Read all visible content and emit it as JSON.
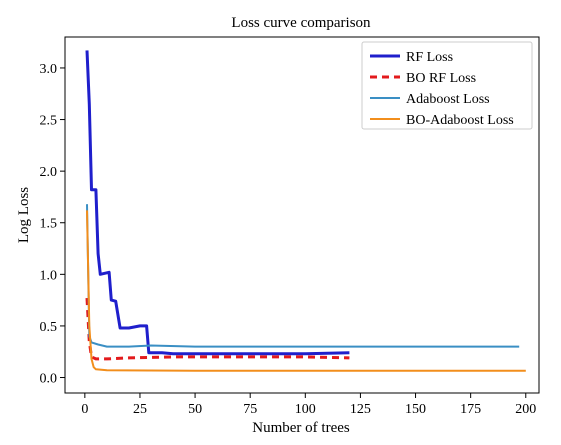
{
  "chart_data": {
    "type": "line",
    "title": "Loss curve comparison",
    "xlabel": "Number of trees",
    "ylabel": "Log Loss",
    "xlim": [
      -9,
      206
    ],
    "ylim": [
      -0.15,
      3.3
    ],
    "xticks": [
      0,
      25,
      50,
      75,
      100,
      125,
      150,
      175,
      200
    ],
    "yticks": [
      0.0,
      0.5,
      1.0,
      1.5,
      2.0,
      2.5,
      3.0
    ],
    "ytick_labels": [
      "0.0",
      "0.5",
      "1.0",
      "1.5",
      "2.0",
      "2.5",
      "3.0"
    ],
    "grid": false,
    "legend_position": "top-right",
    "series": [
      {
        "name": "RF Loss",
        "color": "#1f1fcc",
        "style": "solid",
        "width": "thick",
        "points": [
          [
            1,
            3.17
          ],
          [
            2,
            2.65
          ],
          [
            3,
            1.82
          ],
          [
            5,
            1.82
          ],
          [
            6,
            1.2
          ],
          [
            7,
            1.0
          ],
          [
            11,
            1.02
          ],
          [
            12,
            0.75
          ],
          [
            14,
            0.74
          ],
          [
            16,
            0.48
          ],
          [
            20,
            0.48
          ],
          [
            25,
            0.5
          ],
          [
            28,
            0.5
          ],
          [
            29,
            0.24
          ],
          [
            35,
            0.24
          ],
          [
            40,
            0.23
          ],
          [
            60,
            0.23
          ],
          [
            80,
            0.23
          ],
          [
            100,
            0.23
          ],
          [
            120,
            0.24
          ]
        ]
      },
      {
        "name": "BO RF Loss",
        "color": "#e31a1c",
        "style": "dashed",
        "width": "thick",
        "points": [
          [
            1,
            0.77
          ],
          [
            2,
            0.35
          ],
          [
            3,
            0.2
          ],
          [
            5,
            0.18
          ],
          [
            10,
            0.18
          ],
          [
            20,
            0.19
          ],
          [
            40,
            0.2
          ],
          [
            60,
            0.2
          ],
          [
            80,
            0.2
          ],
          [
            100,
            0.2
          ],
          [
            120,
            0.19
          ]
        ]
      },
      {
        "name": "Adaboost Loss",
        "color": "#3a8fc4",
        "style": "solid",
        "width": "normal",
        "points": [
          [
            1,
            1.68
          ],
          [
            2,
            0.4
          ],
          [
            3,
            0.34
          ],
          [
            6,
            0.32
          ],
          [
            10,
            0.3
          ],
          [
            20,
            0.3
          ],
          [
            30,
            0.31
          ],
          [
            50,
            0.3
          ],
          [
            100,
            0.3
          ],
          [
            150,
            0.3
          ],
          [
            197,
            0.3
          ]
        ]
      },
      {
        "name": "BO-Adaboost Loss",
        "color": "#f28e1c",
        "style": "solid",
        "width": "normal",
        "points": [
          [
            1,
            1.62
          ],
          [
            2,
            0.5
          ],
          [
            3,
            0.18
          ],
          [
            4,
            0.1
          ],
          [
            5,
            0.08
          ],
          [
            10,
            0.07
          ],
          [
            50,
            0.065
          ],
          [
            100,
            0.065
          ],
          [
            150,
            0.065
          ],
          [
            200,
            0.065
          ]
        ]
      }
    ]
  }
}
